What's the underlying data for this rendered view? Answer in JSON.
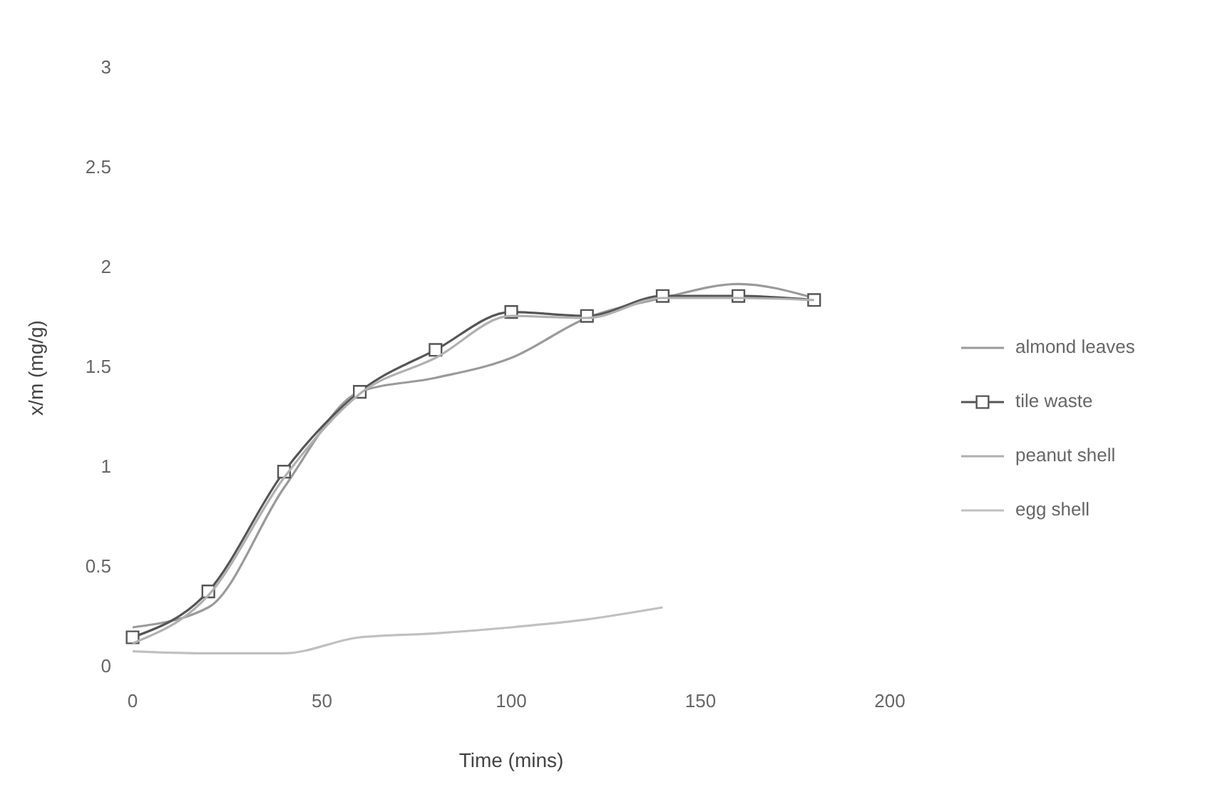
{
  "chart_data": {
    "type": "line",
    "xlabel": "Time (mins)",
    "ylabel": "x/m (mg/g)",
    "xlim": [
      0,
      200
    ],
    "xticks": [
      0,
      50,
      100,
      150,
      200
    ],
    "ylim": [
      0,
      3
    ],
    "yticks": [
      0,
      0.5,
      1,
      1.5,
      2,
      2.5,
      3
    ],
    "grid": false,
    "legend": "right",
    "marker": "none",
    "x": [
      0,
      20,
      40,
      60,
      80,
      100,
      120,
      140,
      160,
      180
    ],
    "series": [
      {
        "name": "almond leaves",
        "color": "#9a9a9a",
        "values": [
          0.2,
          0.3,
          0.9,
          1.38,
          1.45,
          1.55,
          1.75,
          1.85,
          1.92,
          1.85
        ]
      },
      {
        "name": "tile waste",
        "color": "#555555",
        "marker": "square",
        "values": [
          0.15,
          0.38,
          0.98,
          1.38,
          1.59,
          1.78,
          1.76,
          1.86,
          1.86,
          1.84
        ]
      },
      {
        "name": "peanut shell",
        "color": "#b0b0b0",
        "values": [
          0.12,
          0.36,
          0.95,
          1.37,
          1.55,
          1.76,
          1.75,
          1.85,
          1.85,
          1.84
        ]
      },
      {
        "name": "egg shell",
        "color": "#c0c0c0",
        "x": [
          0,
          20,
          40,
          60,
          80,
          100,
          120,
          140
        ],
        "values": [
          0.08,
          0.07,
          0.07,
          0.15,
          0.17,
          0.2,
          0.24,
          0.3
        ]
      }
    ]
  }
}
